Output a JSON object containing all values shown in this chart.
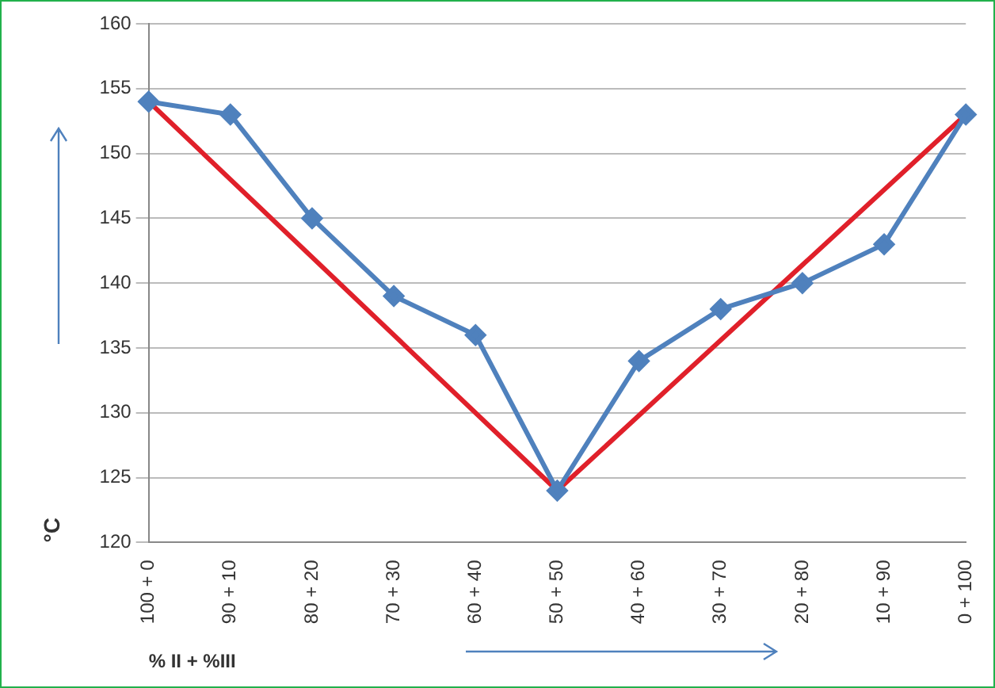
{
  "chart_data": {
    "type": "line",
    "ylabel": "°C",
    "xlabel": "% II + %III",
    "categories": [
      "100 + 0",
      "90 + 10",
      "80 + 20",
      "70 + 30",
      "60 + 40",
      "50 + 50",
      "40 + 60",
      "30 + 70",
      "20 + 80",
      "10 + 90",
      "0 + 100"
    ],
    "series": [
      {
        "color": "#4f81bd",
        "marker": "diamond",
        "values": [
          154,
          153,
          145,
          139,
          136,
          124,
          134,
          138,
          140,
          143,
          153
        ]
      },
      {
        "color": "#e0202a",
        "marker": "none",
        "values": [
          154,
          null,
          null,
          null,
          null,
          124,
          null,
          null,
          null,
          null,
          153
        ]
      }
    ],
    "ylim": [
      120,
      160
    ],
    "yticks": [
      120,
      125,
      130,
      135,
      140,
      145,
      150,
      155,
      160
    ],
    "grid": "y",
    "legend": false
  }
}
